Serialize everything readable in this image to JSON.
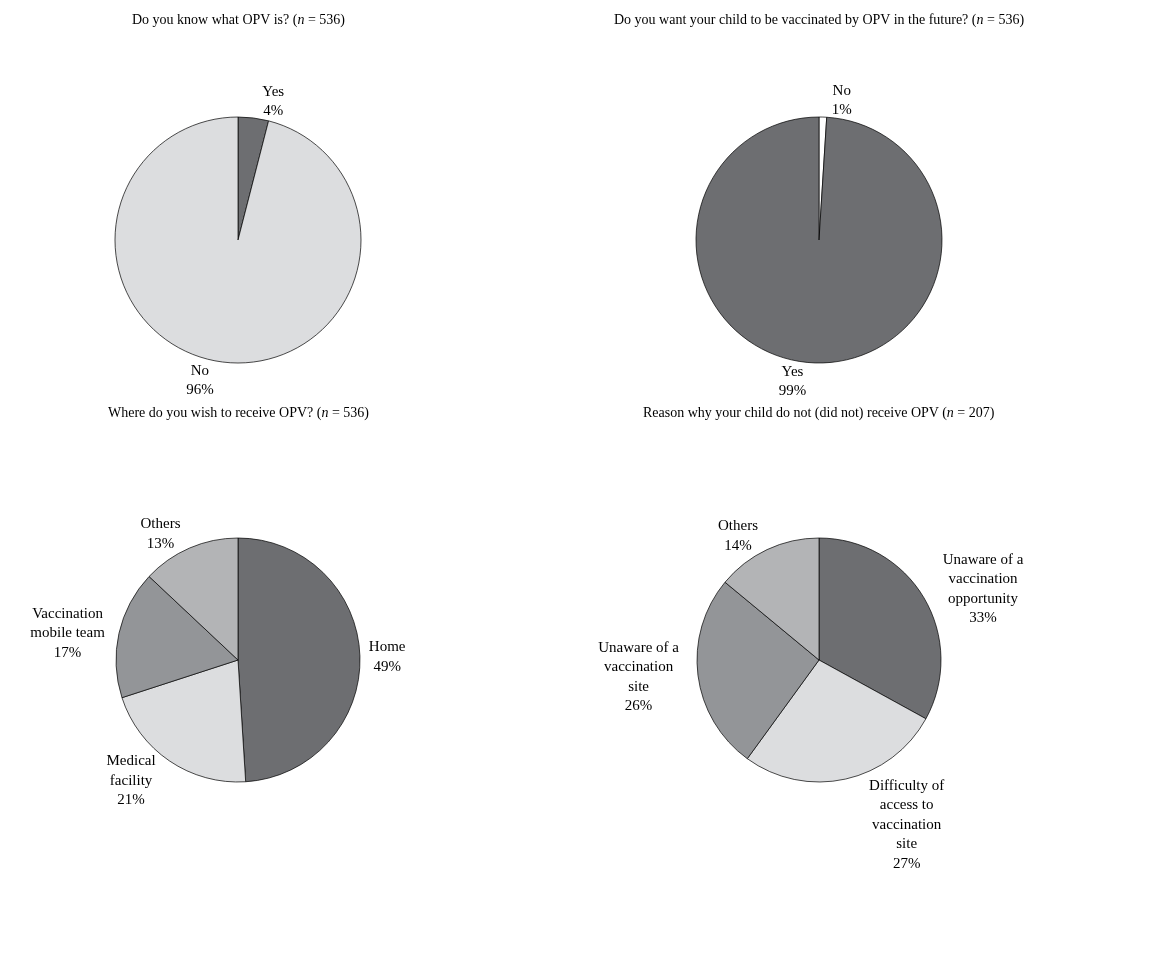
{
  "chart_data": [
    {
      "type": "pie",
      "title": "Do you know what OPV is? (n = 536)",
      "categories": [
        "Yes",
        "No"
      ],
      "values": [
        4,
        96
      ],
      "value_labels": [
        "4%",
        "96%"
      ],
      "colors": [
        "#6d6e71",
        "#dcdddf"
      ]
    },
    {
      "type": "pie",
      "title": "Do you want your child to be vaccinated by OPV in the future? (n = 536)",
      "categories": [
        "No",
        "Yes"
      ],
      "values": [
        1,
        99
      ],
      "value_labels": [
        "1%",
        "99%"
      ],
      "colors": [
        "#ffffff",
        "#6d6e71"
      ]
    },
    {
      "type": "pie",
      "title": "Where do you wish to receive OPV? (n = 536)",
      "categories": [
        "Home",
        "Medical\nfacility",
        "Vaccination\nmobile team",
        "Others"
      ],
      "values": [
        49,
        21,
        17,
        13
      ],
      "value_labels": [
        "49%",
        "21%",
        "17%",
        "13%"
      ],
      "colors": [
        "#6d6e71",
        "#dcdddf",
        "#939598",
        "#b3b4b6"
      ]
    },
    {
      "type": "pie",
      "title": "Reason why your child do not (did not) receive OPV (n = 207)",
      "categories": [
        "Unaware of a\nvaccination\nopportunity",
        "Difficulty of\naccess to\nvaccination\nsite",
        "Unaware of a\nvaccination\nsite",
        "Others"
      ],
      "values": [
        33,
        27,
        26,
        14
      ],
      "value_labels": [
        "33%",
        "27%",
        "26%",
        "14%"
      ],
      "colors": [
        "#6d6e71",
        "#dcdddf",
        "#939598",
        "#b3b4b6"
      ]
    }
  ]
}
